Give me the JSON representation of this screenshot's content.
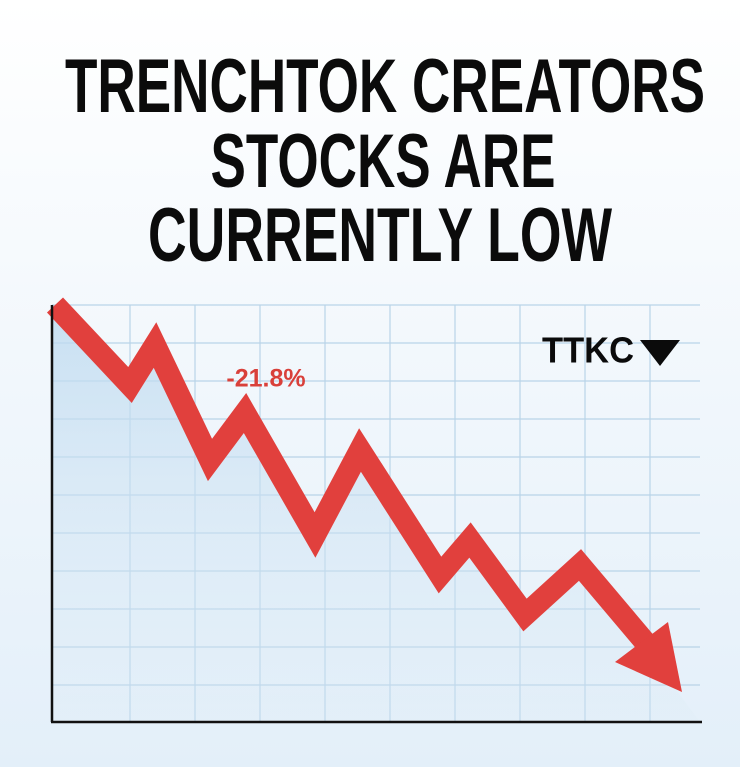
{
  "title": {
    "lines": [
      "TRENCHTOK CREATORS",
      "STOCKS ARE",
      "CURRENTLY LOW"
    ]
  },
  "chart": {
    "change_label": "-21.8%",
    "ticker": "TTKC"
  }
}
